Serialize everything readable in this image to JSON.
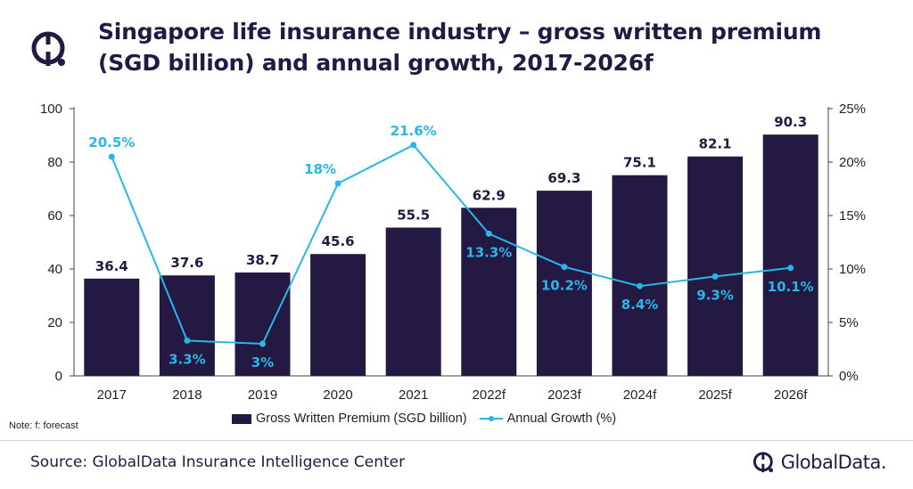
{
  "header": {
    "title": "Singapore life insurance industry – gross written premium (SGD billion) and annual growth, 2017-2026f"
  },
  "chart_data": {
    "type": "bar",
    "categories": [
      "2017",
      "2018",
      "2019",
      "2020",
      "2021",
      "2022f",
      "2023f",
      "2024f",
      "2025f",
      "2026f"
    ],
    "series": [
      {
        "name": "Gross Written Premium (SGD billion)",
        "type": "bar",
        "axis": "left",
        "values": [
          36.4,
          37.6,
          38.7,
          45.6,
          55.5,
          62.9,
          69.3,
          75.1,
          82.1,
          90.3
        ],
        "labels": [
          "36.4",
          "37.6",
          "38.7",
          "45.6",
          "55.5",
          "62.9",
          "69.3",
          "75.1",
          "82.1",
          "90.3"
        ],
        "color": "#231942"
      },
      {
        "name": "Annual Growth (%)",
        "type": "line",
        "axis": "right",
        "values": [
          20.5,
          3.3,
          3.0,
          18.0,
          21.6,
          13.3,
          10.2,
          8.4,
          9.3,
          10.1
        ],
        "labels": [
          "20.5%",
          "3.3%",
          "3%",
          "18%",
          "21.6%",
          "13.3%",
          "10.2%",
          "8.4%",
          "9.3%",
          "10.1%"
        ],
        "color": "#29b6e8"
      }
    ],
    "y_left": {
      "ylim": [
        0,
        100
      ],
      "ticks": [
        "0",
        "20",
        "40",
        "60",
        "80",
        "100"
      ]
    },
    "y_right": {
      "ylim": [
        0,
        25
      ],
      "ticks": [
        "0%",
        "5%",
        "10%",
        "15%",
        "20%",
        "25%"
      ]
    },
    "legend_position": "bottom",
    "grid": false
  },
  "note": "Note: f: forecast",
  "source": "Source: GlobalData Insurance Intelligence Center",
  "brand": {
    "name": "GlobalData.",
    "icon": "globaldata-logo-icon"
  }
}
